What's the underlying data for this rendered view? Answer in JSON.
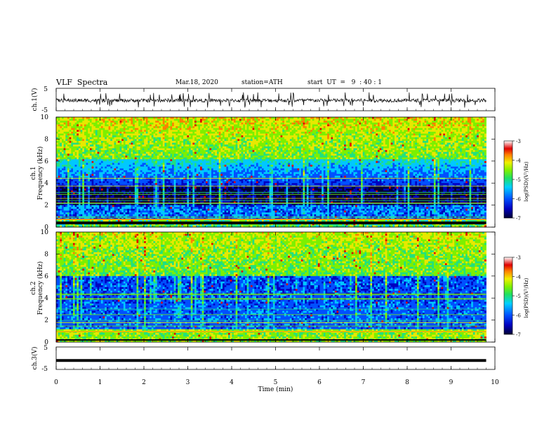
{
  "header": {
    "title": "VLF  Spectra",
    "date": "Mar.18, 2020",
    "station": "station=ATH",
    "start": "start  UT  =   9  : 40 : 1"
  },
  "chart_data": [
    {
      "type": "line",
      "name": "ch1-waveform",
      "ylabel": "ch.1(V)",
      "yticks": [
        "5",
        "-5"
      ],
      "ylim": [
        -5,
        5
      ],
      "xlim": [
        0,
        10
      ],
      "description_level": "noisy waveform around -1 V with spikes"
    },
    {
      "type": "heatmap",
      "name": "ch1-spectrogram",
      "ylabel": "Frequency  (kHz)",
      "ylabel_channel": "ch.1",
      "ylim": [
        0,
        10
      ],
      "yticks": [
        "0",
        "2",
        "4",
        "6",
        "8",
        "10"
      ],
      "colorbar": {
        "label": "log(PSD)(V²/Hz)",
        "ticks": [
          "-3",
          "-4",
          "-5",
          "-6",
          "-7"
        ],
        "range": [
          -7,
          -3
        ]
      }
    },
    {
      "type": "heatmap",
      "name": "ch2-spectrogram",
      "ylabel": "Frequency  (kHz)",
      "ylabel_channel": "ch.2",
      "ylim": [
        0,
        10
      ],
      "yticks": [
        "0",
        "2",
        "4",
        "6",
        "8",
        "10"
      ],
      "colorbar": {
        "label": "log(PSD)(V²/Hz)",
        "ticks": [
          "-3",
          "-4",
          "-5",
          "-6",
          "-7"
        ],
        "range": [
          -7,
          -3
        ]
      }
    },
    {
      "type": "line",
      "name": "ch3-waveform",
      "ylabel": "ch.3(V)",
      "yticks": [
        "5",
        "-5"
      ],
      "ylim": [
        -5,
        5
      ],
      "level": -1
    }
  ],
  "xaxis": {
    "label": "Time  (min)",
    "ticks": [
      "0",
      "1",
      "2",
      "3",
      "4",
      "5",
      "6",
      "7",
      "8",
      "9",
      "10"
    ],
    "data_end": 9.8
  },
  "colors": {
    "colormap": [
      "#000033",
      "#0000c0",
      "#0050ff",
      "#00c8ff",
      "#20e080",
      "#7cf000",
      "#e8e800",
      "#ff8000",
      "#e00000",
      "#ffffff"
    ]
  }
}
